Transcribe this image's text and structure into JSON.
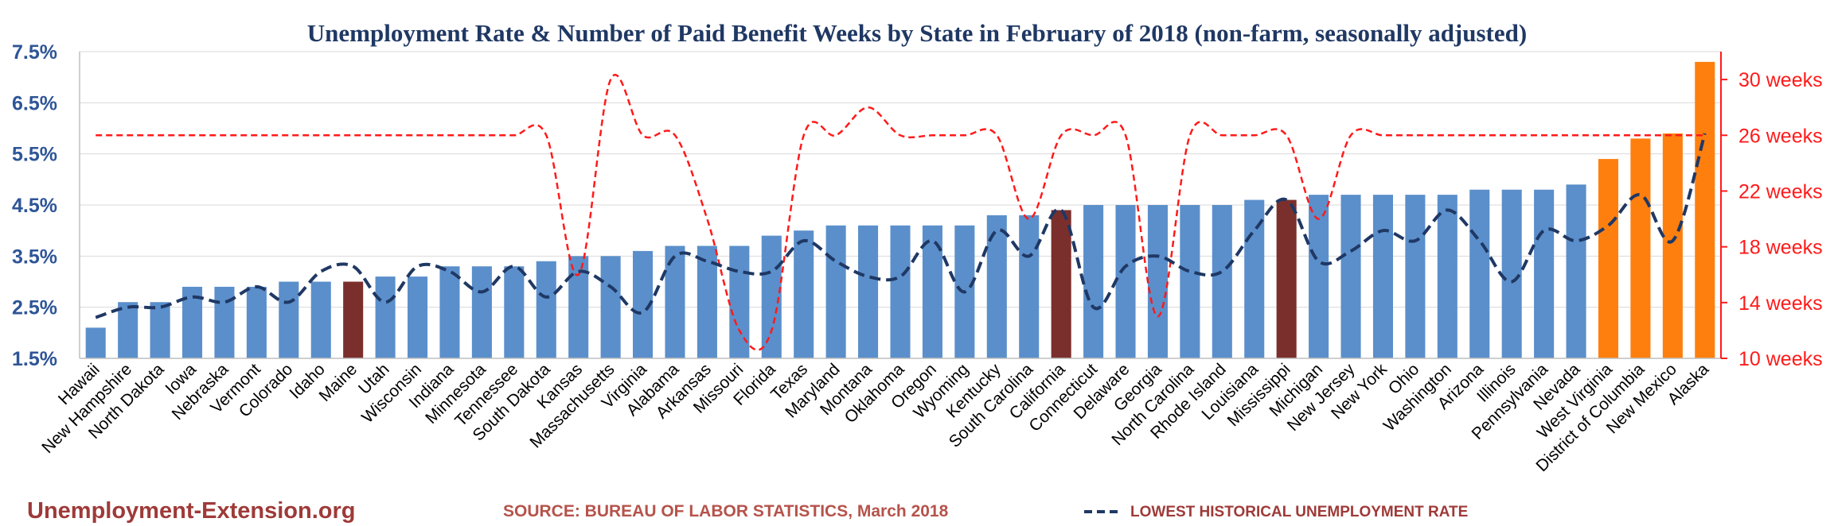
{
  "chart_data": {
    "type": "bar",
    "title": "Unemployment Rate & Number of Paid Benefit Weeks by State in February of 2018 (non-farm, seasonally adjusted)",
    "categories": [
      "Hawaii",
      "New Hampshire",
      "North Dakota",
      "Iowa",
      "Nebraska",
      "Vermont",
      "Colorado",
      "Idaho",
      "Maine",
      "Utah",
      "Wisconsin",
      "Indiana",
      "Minnesota",
      "Tennessee",
      "South Dakota",
      "Kansas",
      "Massachusetts",
      "Virginia",
      "Alabama",
      "Arkansas",
      "Missouri",
      "Florida",
      "Texas",
      "Maryland",
      "Montana",
      "Oklahoma",
      "Oregon",
      "Wyoming",
      "Kentucky",
      "South Carolina",
      "California",
      "Connecticut",
      "Delaware",
      "Georgia",
      "North Carolina",
      "Rhode Island",
      "Louisiana",
      "Mississippi",
      "Michigan",
      "New Jersey",
      "New York",
      "Ohio",
      "Washington",
      "Arizona",
      "Illinois",
      "Pennsylvania",
      "Nevada",
      "West Virginia",
      "District of Columbia",
      "New Mexico",
      "Alaska"
    ],
    "series": [
      {
        "name": "Unemployment Rate",
        "axis": "left",
        "values": [
          2.1,
          2.6,
          2.6,
          2.9,
          2.9,
          2.9,
          3.0,
          3.0,
          3.0,
          3.1,
          3.1,
          3.3,
          3.3,
          3.3,
          3.4,
          3.5,
          3.5,
          3.6,
          3.7,
          3.7,
          3.7,
          3.9,
          4.0,
          4.1,
          4.1,
          4.1,
          4.1,
          4.1,
          4.3,
          4.3,
          4.4,
          4.5,
          4.5,
          4.5,
          4.5,
          4.5,
          4.6,
          4.6,
          4.7,
          4.7,
          4.7,
          4.7,
          4.7,
          4.8,
          4.8,
          4.8,
          4.9,
          5.4,
          5.8,
          5.9,
          7.3
        ],
        "highlight": {
          "Maine": "dark-red",
          "California": "dark-red",
          "Mississippi": "dark-red",
          "West Virginia": "orange",
          "District of Columbia": "orange",
          "New Mexico": "orange",
          "Alaska": "orange"
        }
      },
      {
        "name": "Number of Paid Benefit Weeks",
        "axis": "right",
        "style": "red-dashed",
        "values": [
          26,
          26,
          26,
          26,
          26,
          26,
          26,
          26,
          26,
          26,
          26,
          26,
          26,
          26,
          26,
          16,
          30,
          26,
          26,
          20,
          12,
          12,
          26,
          26,
          28,
          26,
          26,
          26,
          26,
          20,
          26,
          26,
          26,
          13,
          26,
          26,
          26,
          26,
          20,
          26,
          26,
          26,
          26,
          26,
          26,
          26,
          26,
          26,
          26,
          26,
          26
        ]
      },
      {
        "name": "LOWEST HISTORICAL UNEMPLOYMENT RATE",
        "axis": "left",
        "style": "navy-dashed",
        "values": [
          2.3,
          2.5,
          2.5,
          2.7,
          2.6,
          2.9,
          2.6,
          3.2,
          3.3,
          2.6,
          3.3,
          3.2,
          2.8,
          3.3,
          2.7,
          3.2,
          2.9,
          2.4,
          3.5,
          3.4,
          3.2,
          3.2,
          3.8,
          3.4,
          3.1,
          3.1,
          3.8,
          2.8,
          4.0,
          3.5,
          4.4,
          2.5,
          3.3,
          3.5,
          3.2,
          3.2,
          4.0,
          4.6,
          3.4,
          3.6,
          4.0,
          3.8,
          4.4,
          3.8,
          3.0,
          4.0,
          3.8,
          4.1,
          4.7,
          3.8,
          5.9
        ]
      }
    ],
    "y_left": {
      "min": 1.5,
      "max": 7.5,
      "ticks": [
        "1.5%",
        "2.5%",
        "3.5%",
        "4.5%",
        "5.5%",
        "6.5%",
        "7.5%"
      ]
    },
    "y_right": {
      "min": 10,
      "max": 32,
      "ticks": [
        "10 weeks",
        "14 weeks",
        "18 weeks",
        "22 weeks",
        "26 weeks",
        "30 weeks"
      ]
    },
    "colors": {
      "bar": "#5b8fcb",
      "highlight_dark": "#7b2f2c",
      "highlight_orange": "#ff7f0e",
      "weeks_line": "#ff1a1a",
      "lowest_line": "#1f3864"
    }
  },
  "footer": {
    "site": "Unemployment-Extension.org",
    "source": "SOURCE: BUREAU OF LABOR STATISTICS, March 2018",
    "legend_label": "LOWEST HISTORICAL UNEMPLOYMENT RATE"
  }
}
